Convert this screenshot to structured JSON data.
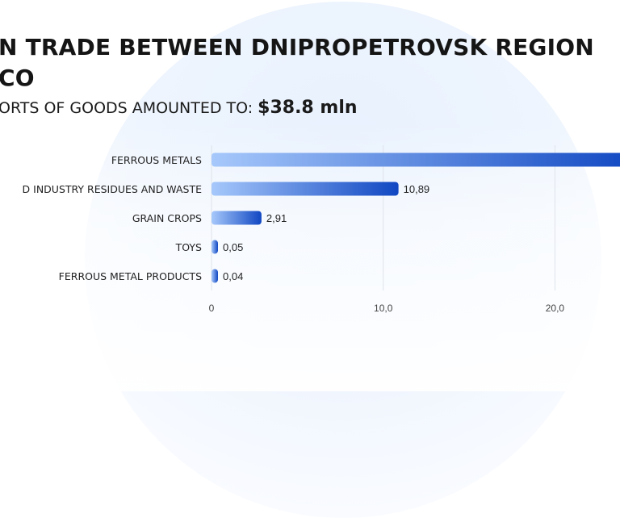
{
  "title": "N TRADE BETWEEN DNIPROPETROVSK REGION\nCO",
  "subtitle": {
    "label": "ORTS OF GOODS AMOUNTED TO:",
    "amount": "$38.8 mln"
  },
  "colors": {
    "bar_light": "#a6c8fb",
    "bar_dark": "#1047c2",
    "text": "#222222"
  },
  "chart_data": {
    "type": "bar",
    "orientation": "horizontal",
    "categories": [
      "FERROUS METALS",
      "D INDUSTRY RESIDUES AND WASTE",
      "GRAIN CROPS",
      "TOYS",
      "FERROUS METAL PRODUCTS"
    ],
    "values": [
      24.9,
      10.89,
      2.91,
      0.05,
      0.04
    ],
    "value_labels": [
      "",
      "10,89",
      "2,91",
      "0,05",
      "0,04"
    ],
    "xticks": [
      "0",
      "10,0",
      "20,0"
    ],
    "xtick_values": [
      0,
      10,
      20
    ],
    "xlim": [
      0,
      24.2
    ],
    "grid": true
  }
}
